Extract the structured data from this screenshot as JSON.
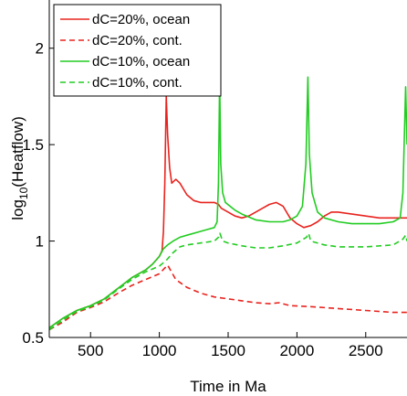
{
  "chart_data": {
    "type": "line",
    "title": "",
    "xlabel": "Time in Ma",
    "ylabel": {
      "base": "log",
      "sub": "10",
      "rest": "(Heatflow)"
    },
    "xlim": [
      200,
      2800
    ],
    "ylim": [
      0.5,
      2.25
    ],
    "xticks": [
      500,
      1000,
      1500,
      2000,
      2500
    ],
    "yticks": [
      0.5,
      1,
      1.5,
      2
    ],
    "ytick_labels": [
      "0.5",
      "1",
      "1.5",
      "2"
    ],
    "grid": false,
    "legend": "top-left",
    "series": [
      {
        "name": "dC=20%, ocean",
        "color": "#e8231e",
        "dash": "solid",
        "points": [
          [
            200,
            0.55
          ],
          [
            300,
            0.6
          ],
          [
            400,
            0.64
          ],
          [
            500,
            0.665
          ],
          [
            600,
            0.7
          ],
          [
            700,
            0.755
          ],
          [
            800,
            0.81
          ],
          [
            900,
            0.85
          ],
          [
            950,
            0.88
          ],
          [
            1000,
            0.92
          ],
          [
            1020,
            0.95
          ],
          [
            1030,
            1.05
          ],
          [
            1040,
            1.3
          ],
          [
            1050,
            1.75
          ],
          [
            1060,
            1.55
          ],
          [
            1075,
            1.38
          ],
          [
            1090,
            1.3
          ],
          [
            1120,
            1.32
          ],
          [
            1150,
            1.3
          ],
          [
            1200,
            1.24
          ],
          [
            1250,
            1.21
          ],
          [
            1300,
            1.2
          ],
          [
            1350,
            1.2
          ],
          [
            1400,
            1.2
          ],
          [
            1430,
            1.19
          ],
          [
            1450,
            1.17
          ],
          [
            1500,
            1.15
          ],
          [
            1550,
            1.13
          ],
          [
            1600,
            1.12
          ],
          [
            1650,
            1.13
          ],
          [
            1700,
            1.15
          ],
          [
            1750,
            1.17
          ],
          [
            1800,
            1.19
          ],
          [
            1850,
            1.2
          ],
          [
            1900,
            1.18
          ],
          [
            1950,
            1.12
          ],
          [
            2000,
            1.09
          ],
          [
            2050,
            1.07
          ],
          [
            2100,
            1.08
          ],
          [
            2150,
            1.1
          ],
          [
            2200,
            1.13
          ],
          [
            2250,
            1.15
          ],
          [
            2300,
            1.15
          ],
          [
            2400,
            1.14
          ],
          [
            2500,
            1.13
          ],
          [
            2600,
            1.12
          ],
          [
            2700,
            1.12
          ],
          [
            2800,
            1.12
          ]
        ]
      },
      {
        "name": "dC=20%, cont.",
        "color": "#e8231e",
        "dash": "dashed",
        "points": [
          [
            200,
            0.54
          ],
          [
            300,
            0.58
          ],
          [
            400,
            0.63
          ],
          [
            500,
            0.655
          ],
          [
            600,
            0.685
          ],
          [
            700,
            0.73
          ],
          [
            800,
            0.77
          ],
          [
            900,
            0.8
          ],
          [
            1000,
            0.83
          ],
          [
            1040,
            0.86
          ],
          [
            1060,
            0.875
          ],
          [
            1080,
            0.85
          ],
          [
            1120,
            0.8
          ],
          [
            1200,
            0.76
          ],
          [
            1300,
            0.73
          ],
          [
            1400,
            0.71
          ],
          [
            1500,
            0.7
          ],
          [
            1600,
            0.69
          ],
          [
            1700,
            0.68
          ],
          [
            1800,
            0.675
          ],
          [
            1870,
            0.68
          ],
          [
            1950,
            0.665
          ],
          [
            2100,
            0.66
          ],
          [
            2300,
            0.65
          ],
          [
            2500,
            0.64
          ],
          [
            2700,
            0.63
          ],
          [
            2800,
            0.63
          ]
        ]
      },
      {
        "name": "dC=10%, ocean",
        "color": "#22cc22",
        "dash": "solid",
        "points": [
          [
            200,
            0.55
          ],
          [
            300,
            0.6
          ],
          [
            400,
            0.64
          ],
          [
            500,
            0.665
          ],
          [
            600,
            0.7
          ],
          [
            700,
            0.755
          ],
          [
            800,
            0.81
          ],
          [
            900,
            0.85
          ],
          [
            950,
            0.88
          ],
          [
            1000,
            0.92
          ],
          [
            1030,
            0.96
          ],
          [
            1060,
            0.98
          ],
          [
            1100,
            1.0
          ],
          [
            1150,
            1.02
          ],
          [
            1200,
            1.03
          ],
          [
            1300,
            1.05
          ],
          [
            1350,
            1.06
          ],
          [
            1400,
            1.07
          ],
          [
            1420,
            1.1
          ],
          [
            1430,
            1.3
          ],
          [
            1438,
            1.85
          ],
          [
            1446,
            1.4
          ],
          [
            1460,
            1.25
          ],
          [
            1480,
            1.2
          ],
          [
            1550,
            1.16
          ],
          [
            1600,
            1.14
          ],
          [
            1700,
            1.11
          ],
          [
            1800,
            1.1
          ],
          [
            1900,
            1.1
          ],
          [
            1950,
            1.11
          ],
          [
            2000,
            1.13
          ],
          [
            2040,
            1.18
          ],
          [
            2065,
            1.4
          ],
          [
            2080,
            1.85
          ],
          [
            2090,
            1.45
          ],
          [
            2110,
            1.25
          ],
          [
            2150,
            1.15
          ],
          [
            2200,
            1.12
          ],
          [
            2300,
            1.1
          ],
          [
            2400,
            1.09
          ],
          [
            2500,
            1.09
          ],
          [
            2600,
            1.09
          ],
          [
            2700,
            1.1
          ],
          [
            2750,
            1.12
          ],
          [
            2770,
            1.25
          ],
          [
            2790,
            1.8
          ],
          [
            2800,
            1.5
          ]
        ]
      },
      {
        "name": "dC=10%, cont.",
        "color": "#22cc22",
        "dash": "dashed",
        "points": [
          [
            200,
            0.54
          ],
          [
            300,
            0.59
          ],
          [
            400,
            0.635
          ],
          [
            500,
            0.66
          ],
          [
            600,
            0.695
          ],
          [
            700,
            0.75
          ],
          [
            800,
            0.8
          ],
          [
            900,
            0.84
          ],
          [
            1000,
            0.87
          ],
          [
            1050,
            0.9
          ],
          [
            1100,
            0.94
          ],
          [
            1150,
            0.97
          ],
          [
            1200,
            0.98
          ],
          [
            1300,
            0.99
          ],
          [
            1400,
            1.0
          ],
          [
            1430,
            1.02
          ],
          [
            1440,
            1.04
          ],
          [
            1460,
            1.0
          ],
          [
            1500,
            0.99
          ],
          [
            1600,
            0.975
          ],
          [
            1700,
            0.965
          ],
          [
            1800,
            0.965
          ],
          [
            1900,
            0.975
          ],
          [
            2000,
            0.99
          ],
          [
            2070,
            1.02
          ],
          [
            2085,
            1.04
          ],
          [
            2100,
            1.0
          ],
          [
            2200,
            0.98
          ],
          [
            2300,
            0.97
          ],
          [
            2500,
            0.97
          ],
          [
            2700,
            0.98
          ],
          [
            2770,
            1.01
          ],
          [
            2790,
            1.03
          ],
          [
            2800,
            1.0
          ]
        ]
      }
    ]
  }
}
